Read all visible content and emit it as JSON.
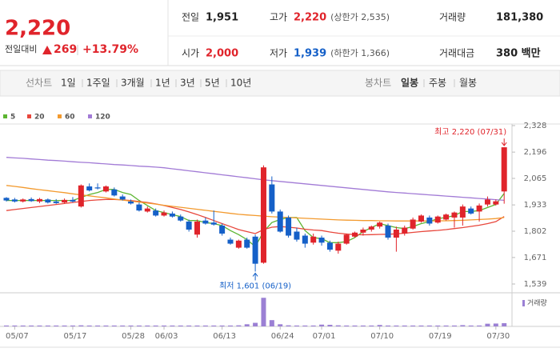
{
  "header": {
    "price": "2,220",
    "change_label": "전일대비",
    "change": "269",
    "change_rate": "+13.79%",
    "up_color": "#e0242b",
    "down_color": "#1560c8",
    "stats": [
      [
        {
          "label": "전일",
          "value": "1,951",
          "color": "#222222"
        },
        {
          "label": "고가",
          "value": "2,220",
          "note": "(상한가 2,535)",
          "color": "#e0242b"
        },
        {
          "label": "거래량",
          "value": "181,380",
          "color": "#222222"
        }
      ],
      [
        {
          "label": "시가",
          "value": "2,000",
          "color": "#e0242b"
        },
        {
          "label": "저가",
          "value": "1,939",
          "note": "(하한가 1,366)",
          "color": "#1560c8"
        },
        {
          "label": "거래대금",
          "value": "380 백만",
          "color": "#222222"
        }
      ]
    ]
  },
  "tabs": {
    "line_label": "선차트",
    "line_periods": [
      "1일",
      "1주일",
      "3개월",
      "1년",
      "3년",
      "5년",
      "10년"
    ],
    "candle_label": "봉차트",
    "candle_periods": [
      "일봉",
      "주봉",
      "월봉"
    ],
    "active_candle_period": 0
  },
  "chart_data": {
    "type": "candlestick",
    "categories": [
      null,
      "05/07",
      null,
      null,
      null,
      null,
      null,
      null,
      "05/17",
      null,
      null,
      null,
      null,
      null,
      null,
      "05/28",
      null,
      null,
      null,
      "06/03",
      null,
      null,
      null,
      null,
      null,
      null,
      "06/13",
      null,
      null,
      null,
      null,
      null,
      null,
      "06/24",
      null,
      null,
      null,
      null,
      "07/01",
      null,
      null,
      null,
      null,
      null,
      null,
      "07/10",
      null,
      null,
      null,
      null,
      null,
      null,
      "07/19",
      null,
      null,
      null,
      null,
      null,
      null,
      "07/30",
      null
    ],
    "open": [
      1968,
      1960,
      1950,
      1962,
      1950,
      1960,
      1950,
      1945,
      1958,
      1925,
      2025,
      2020,
      2000,
      2010,
      1975,
      1950,
      1935,
      1900,
      1905,
      1880,
      1890,
      1875,
      1850,
      1785,
      1855,
      1845,
      1830,
      1760,
      1720,
      1760,
      1775,
      1645,
      2035,
      1900,
      1870,
      1800,
      1780,
      1745,
      1770,
      1745,
      1705,
      1740,
      1775,
      1795,
      1810,
      1825,
      1830,
      1770,
      1790,
      1815,
      1850,
      1870,
      1845,
      1860,
      1870,
      1870,
      1915,
      1900,
      1935,
      1935,
      2000
    ],
    "high": [
      1972,
      1968,
      1965,
      1970,
      1968,
      1965,
      1962,
      1965,
      1972,
      2035,
      2040,
      2040,
      2030,
      2020,
      1985,
      1960,
      1945,
      1925,
      1915,
      1905,
      1900,
      1885,
      1860,
      1860,
      1870,
      1905,
      1840,
      1770,
      1760,
      1770,
      1785,
      2130,
      2075,
      1910,
      1880,
      1820,
      1790,
      1790,
      1780,
      1755,
      1750,
      1790,
      1800,
      1820,
      1830,
      1850,
      1840,
      1825,
      1830,
      1870,
      1885,
      1880,
      1880,
      1890,
      1900,
      1935,
      1925,
      1940,
      1975,
      1960,
      2220
    ],
    "low": [
      1950,
      1945,
      1945,
      1948,
      1942,
      1940,
      1938,
      1940,
      1945,
      1920,
      2000,
      2010,
      1995,
      1975,
      1955,
      1935,
      1900,
      1895,
      1875,
      1875,
      1870,
      1850,
      1800,
      1770,
      1835,
      1830,
      1780,
      1735,
      1715,
      1715,
      1601,
      1640,
      1890,
      1795,
      1770,
      1750,
      1720,
      1735,
      1730,
      1700,
      1690,
      1735,
      1770,
      1780,
      1800,
      1815,
      1760,
      1700,
      1780,
      1810,
      1845,
      1830,
      1840,
      1855,
      1820,
      1830,
      1885,
      1850,
      1925,
      1930,
      1939
    ],
    "close": [
      1955,
      1950,
      1960,
      1952,
      1962,
      1945,
      1942,
      1958,
      1950,
      2030,
      2005,
      2015,
      2025,
      1980,
      1960,
      1940,
      1905,
      1915,
      1880,
      1895,
      1875,
      1855,
      1810,
      1850,
      1840,
      1835,
      1790,
      1740,
      1755,
      1720,
      1640,
      2120,
      1900,
      1800,
      1780,
      1760,
      1740,
      1775,
      1745,
      1710,
      1740,
      1785,
      1795,
      1810,
      1825,
      1845,
      1770,
      1810,
      1820,
      1860,
      1880,
      1840,
      1875,
      1885,
      1895,
      1925,
      1890,
      1930,
      1960,
      1951,
      2220
    ],
    "up_color": "#e0242b",
    "down_color": "#1560c8",
    "ylim": [
      1539,
      2328
    ],
    "yticks": [
      {
        "value": 2328,
        "label": "2,328"
      },
      {
        "value": 2196,
        "label": "2,196"
      },
      {
        "value": 2065,
        "label": "2,065"
      },
      {
        "value": 1933,
        "label": "1,933"
      },
      {
        "value": 1802,
        "label": "1,802"
      },
      {
        "value": 1671,
        "label": "1,671"
      },
      {
        "value": 1539,
        "label": "1,539"
      }
    ],
    "moving_averages": [
      {
        "name": "5",
        "color": "#5cb531",
        "values": [
          1955,
          1955,
          1955,
          1955,
          1955,
          1955,
          1955,
          1955,
          1955,
          1970,
          1985,
          1995,
          2010,
          2010,
          1995,
          1985,
          1955,
          1930,
          1905,
          1895,
          1885,
          1875,
          1855,
          1855,
          1845,
          1840,
          1830,
          1805,
          1785,
          1760,
          1725,
          1800,
          1845,
          1860,
          1870,
          1870,
          1805,
          1770,
          1765,
          1745,
          1745,
          1750,
          1770,
          1800,
          1820,
          1840,
          1830,
          1820,
          1815,
          1825,
          1840,
          1850,
          1865,
          1870,
          1880,
          1900,
          1900,
          1905,
          1920,
          1935,
          1990
        ]
      },
      {
        "name": "20",
        "color": "#e8473c",
        "values": [
          1905,
          1910,
          1915,
          1920,
          1925,
          1930,
          1935,
          1940,
          1945,
          1950,
          1955,
          1958,
          1960,
          1960,
          1958,
          1955,
          1950,
          1945,
          1938,
          1930,
          1920,
          1910,
          1898,
          1885,
          1870,
          1855,
          1840,
          1825,
          1810,
          1800,
          1790,
          1810,
          1822,
          1825,
          1822,
          1818,
          1812,
          1808,
          1805,
          1798,
          1792,
          1788,
          1785,
          1784,
          1785,
          1786,
          1787,
          1789,
          1792,
          1796,
          1800,
          1803,
          1806,
          1810,
          1815,
          1820,
          1826,
          1832,
          1840,
          1850,
          1875
        ]
      },
      {
        "name": "60",
        "color": "#f39a2e",
        "values": [
          2030,
          2025,
          2020,
          2014,
          2009,
          2004,
          1999,
          1994,
          1988,
          1983,
          1978,
          1973,
          1968,
          1962,
          1957,
          1952,
          1947,
          1942,
          1937,
          1931,
          1926,
          1921,
          1916,
          1911,
          1906,
          1901,
          1896,
          1891,
          1886,
          1883,
          1880,
          1877,
          1874,
          1872,
          1870,
          1868,
          1866,
          1864,
          1862,
          1860,
          1858,
          1857,
          1856,
          1855,
          1855,
          1854,
          1854,
          1853,
          1853,
          1853,
          1853,
          1853,
          1854,
          1854,
          1855,
          1856,
          1858,
          1860,
          1862,
          1865,
          1870
        ]
      },
      {
        "name": "120",
        "color": "#a27bd6",
        "values": [
          2170,
          2167,
          2165,
          2162,
          2159,
          2156,
          2154,
          2151,
          2148,
          2145,
          2143,
          2140,
          2137,
          2134,
          2132,
          2129,
          2126,
          2124,
          2121,
          2118,
          2113,
          2108,
          2103,
          2098,
          2093,
          2088,
          2083,
          2078,
          2073,
          2068,
          2063,
          2058,
          2054,
          2050,
          2046,
          2042,
          2038,
          2034,
          2030,
          2026,
          2022,
          2018,
          2014,
          2010,
          2006,
          2002,
          1998,
          1995,
          1992,
          1989,
          1986,
          1983,
          1980,
          1977,
          1974,
          1971,
          1968,
          1965,
          1962,
          1959,
          1956
        ]
      }
    ],
    "volume": {
      "name": "거래량",
      "color": "#9b80d4",
      "ylim": [
        0,
        1700000
      ],
      "values": [
        50000,
        50000,
        50000,
        50000,
        50000,
        50000,
        50000,
        50000,
        50000,
        60000,
        50000,
        50000,
        50000,
        50000,
        50000,
        50000,
        50000,
        50000,
        50000,
        50000,
        50000,
        50000,
        50000,
        50000,
        50000,
        50000,
        50000,
        50000,
        60000,
        120000,
        200000,
        1600000,
        350000,
        120000,
        60000,
        50000,
        50000,
        50000,
        100000,
        90000,
        60000,
        50000,
        50000,
        50000,
        50000,
        80000,
        50000,
        50000,
        50000,
        50000,
        50000,
        50000,
        50000,
        50000,
        50000,
        70000,
        50000,
        50000,
        150000,
        160000,
        181380
      ]
    },
    "high_label": "최고 2,220 (07/31)",
    "low_label": "최저 1,601 (06/19)"
  }
}
